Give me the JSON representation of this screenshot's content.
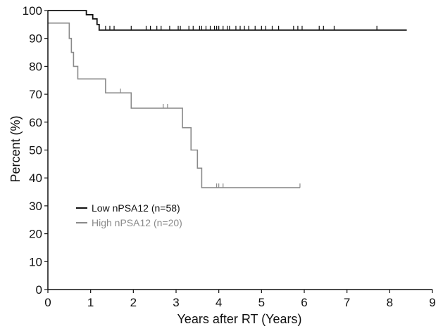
{
  "chart_data": {
    "type": "line",
    "subtype": "kaplan-meier",
    "xlabel": "Years after RT (Years)",
    "ylabel": "Percent (%)",
    "xlim": [
      0,
      9
    ],
    "ylim": [
      0,
      100
    ],
    "xticks": [
      "0",
      "1",
      "2",
      "3",
      "4",
      "5",
      "6",
      "7",
      "8",
      "9"
    ],
    "yticks": [
      "0",
      "10",
      "20",
      "30",
      "40",
      "50",
      "60",
      "70",
      "80",
      "90",
      "100"
    ],
    "grid": false,
    "legend_position": "center-left",
    "series": [
      {
        "name": "Low nPSA12 (n=58)",
        "color": "#111111",
        "steps": [
          [
            0,
            100
          ],
          [
            0.9,
            98.5
          ],
          [
            1.05,
            97
          ],
          [
            1.15,
            95
          ],
          [
            1.2,
            93
          ],
          [
            8.4,
            93
          ]
        ],
        "censored": [
          1.35,
          1.45,
          1.55,
          1.95,
          2.3,
          2.4,
          2.55,
          2.65,
          2.85,
          3.05,
          3.1,
          3.3,
          3.4,
          3.55,
          3.6,
          3.7,
          3.8,
          3.9,
          3.95,
          4.0,
          4.1,
          4.2,
          4.25,
          4.4,
          4.5,
          4.6,
          4.7,
          4.85,
          5.0,
          5.1,
          5.25,
          5.4,
          5.75,
          5.85,
          5.95,
          6.35,
          6.45,
          6.7,
          7.7
        ]
      },
      {
        "name": "High nPSA12 (n=20)",
        "color": "#8a8a8a",
        "steps": [
          [
            0,
            95.5
          ],
          [
            0.5,
            90
          ],
          [
            0.55,
            85
          ],
          [
            0.6,
            80
          ],
          [
            0.7,
            75.5
          ],
          [
            1.35,
            70.5
          ],
          [
            1.95,
            65
          ],
          [
            3.15,
            58
          ],
          [
            3.35,
            50
          ],
          [
            3.5,
            43.5
          ],
          [
            3.6,
            36.5
          ],
          [
            5.9,
            36.5
          ]
        ],
        "censored": [
          1.7,
          2.7,
          2.8,
          3.95,
          4.0,
          4.1,
          5.9
        ]
      }
    ]
  }
}
